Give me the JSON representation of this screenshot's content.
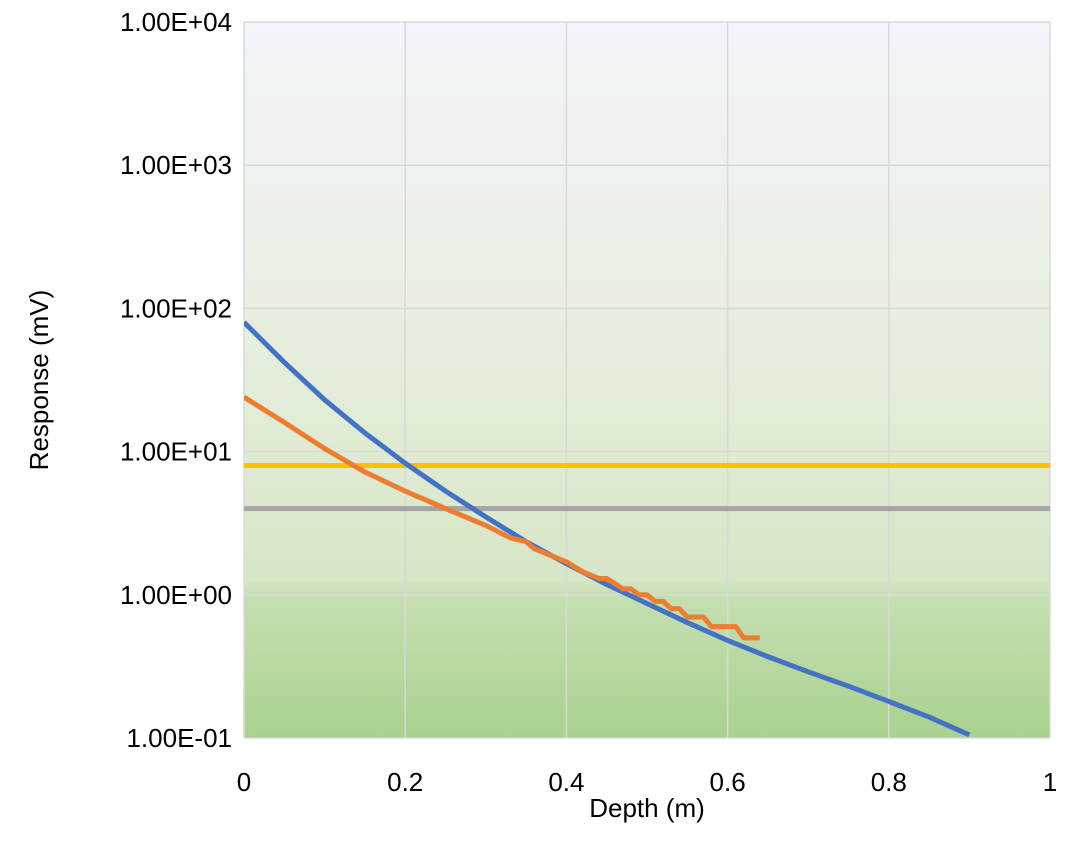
{
  "chart_data": {
    "type": "line",
    "title": "",
    "xlabel": "Depth (m)",
    "ylabel": "Response (mV)",
    "xlim": [
      0,
      1
    ],
    "ylim": [
      0.1,
      10000
    ],
    "yscale": "log",
    "grid": true,
    "legend": "none",
    "background": "gradient: white at top to light green at bottom",
    "xticks": [
      "0",
      "0.2",
      "0.4",
      "0.6",
      "0.8",
      "1"
    ],
    "xtick_values": [
      0,
      0.2,
      0.4,
      0.6,
      0.8,
      1
    ],
    "yticks": [
      "1.00E-01",
      "1.00E+00",
      "1.00E+01",
      "1.00E+02",
      "1.00E+03",
      "1.00E+04"
    ],
    "ytick_values": [
      0.1,
      1,
      10,
      100,
      1000,
      10000
    ],
    "series": [
      {
        "color": "#4472C4",
        "x": [
          0,
          0.05,
          0.1,
          0.15,
          0.2,
          0.25,
          0.3,
          0.35,
          0.4,
          0.45,
          0.5,
          0.55,
          0.6,
          0.65,
          0.7,
          0.75,
          0.8,
          0.85,
          0.9
        ],
        "y": [
          80,
          42,
          23,
          13.5,
          8.3,
          5.3,
          3.5,
          2.35,
          1.65,
          1.18,
          0.87,
          0.64,
          0.48,
          0.37,
          0.29,
          0.23,
          0.18,
          0.14,
          0.105
        ]
      },
      {
        "color": "#ED7D31",
        "x": [
          0,
          0.05,
          0.1,
          0.15,
          0.2,
          0.25,
          0.3,
          0.33,
          0.35,
          0.36,
          0.4,
          0.42,
          0.44,
          0.45,
          0.46,
          0.47,
          0.48,
          0.49,
          0.5,
          0.51,
          0.52,
          0.53,
          0.54,
          0.55,
          0.56,
          0.57,
          0.58,
          0.59,
          0.6,
          0.61,
          0.62,
          0.64
        ],
        "y": [
          24,
          16,
          10.5,
          7.2,
          5.3,
          4,
          3.05,
          2.5,
          2.35,
          2.1,
          1.7,
          1.45,
          1.3,
          1.3,
          1.2,
          1.1,
          1.1,
          1.0,
          1.0,
          0.9,
          0.9,
          0.8,
          0.8,
          0.7,
          0.7,
          0.7,
          0.6,
          0.6,
          0.6,
          0.6,
          0.5,
          0.5
        ]
      },
      {
        "color": "#FFC000",
        "x": [
          0,
          1
        ],
        "y": [
          8,
          8
        ]
      },
      {
        "color": "#A5A5A5",
        "x": [
          0,
          1
        ],
        "y": [
          4,
          4
        ]
      }
    ]
  }
}
